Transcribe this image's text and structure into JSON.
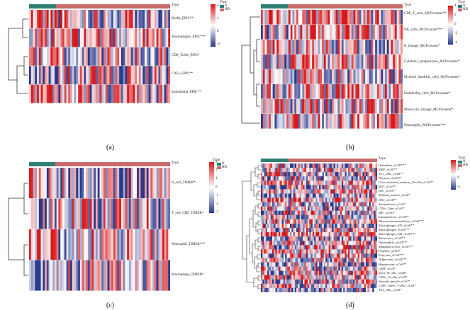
{
  "type_label": "Type",
  "legend_title": "Type",
  "legend_items": [
    "N",
    "HB"
  ],
  "colors": {
    "group_N": "#2e7f74",
    "group_HB": "#c96b6b",
    "high": "#d7191c",
    "mid": "#ffffff",
    "low": "#2b3a8c"
  },
  "panels": [
    {
      "caption": "(a)",
      "ticks": [
        "4",
        "2",
        "0",
        "-2"
      ],
      "rows": [
        "Bcells_EPIC**",
        "Macrophages_EPIC***",
        "CD8_Tcells_EPIC*",
        "CAFs_EPIC**",
        "Endothelial_EPIC**"
      ]
    },
    {
      "caption": "(b)",
      "ticks": [
        "4",
        "2",
        "0",
        "-2",
        "-4"
      ],
      "rows": [
        "CD8_T_cells_MCPcounter**",
        "NK_cells_MCPcounter***",
        "B_lineage_MCPcounter*",
        "Cytotoxic_lymphocytes_MCPcounter*",
        "Myeloid_dendritic_cells_MCPcounter*",
        "Endothelial_cells_MCPcounter*",
        "Monocytic_lineage_MCPcounter*",
        "Neutrophils_MCPcounter***"
      ]
    },
    {
      "caption": "(c)",
      "ticks": [
        "3",
        "2",
        "1",
        "0",
        "-1",
        "-2",
        "-3"
      ],
      "rows": [
        "B_cell_TIMER*",
        "T_cell_CD8_TIMER*",
        "Neutrophil_TIMER***",
        "Macrophage_TIMER*"
      ]
    },
    {
      "caption": "(d)",
      "ticks": [
        "5",
        "0",
        "-5"
      ],
      "rows": [
        "Osteoblast_xCell***",
        "MEP_xCell**",
        "Th1_cells_xCell**",
        "Neurons_xCell**",
        "Class-switched_memory_B-cells_xCell**",
        "pDC_xCell**",
        "iDC_xCell**",
        "Skeletal_muscle_xCell*",
        "HSC_xCell**",
        "StromaScore_xCell*",
        "CD4+_Tem_xCell*",
        "aDC_xCell*",
        "ImmuneScore_xCell**",
        "MicroenvironmentScore_xCell***",
        "Macrophages_M1_xCell**",
        "Macrophages_xCell***",
        "Macrophages_M2_xCell***",
        "Monocytes_xCell**",
        "Neutrophils_xCell***",
        "Megakaryocytes_xCell***",
        "Platelets_xCell*",
        "Pericytes_xCell***",
        "Adipocytes_xCell***",
        "Hepatocytes_xCell**",
        "GMP_xCell*",
        "naive_B-cells_xCell*",
        "CD4+_T-cells_xCell*",
        "Smooth_muscle_xCell*",
        "CD8+_naive_T-cells_xCell*",
        "Th2_cells_xCell*"
      ]
    }
  ]
}
